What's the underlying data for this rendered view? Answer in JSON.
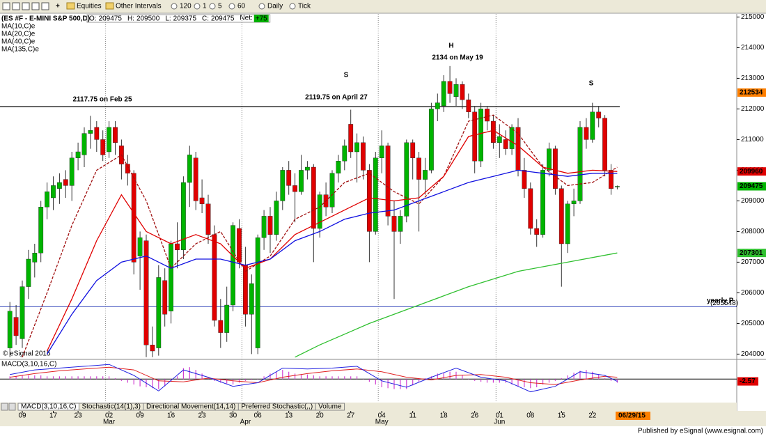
{
  "toolbar": {
    "items": [
      "Equities",
      "Other Intervals",
      "120",
      "1",
      "5",
      "60",
      "Daily",
      "Tick"
    ]
  },
  "watermark": "© eSignal 2015",
  "footer": "Published by eSignal (www.esignal.com)",
  "chart_data": {
    "type": "candlestick",
    "title": "(ES #F - E-MINI S&P 500,D)",
    "quote": [
      {
        "label": "O:",
        "value": 209475
      },
      {
        "label": "H:",
        "value": 209500
      },
      {
        "label": "L:",
        "value": 209375
      },
      {
        "label": "C:",
        "value": 209475
      }
    ],
    "net_label": "Net:",
    "net": "+75",
    "up_color": "#00b400",
    "down_color": "#e00000",
    "open": [
      204200,
      205200,
      204500,
      206200,
      207000,
      207300,
      208800,
      209100,
      209400,
      209700,
      209500,
      210400,
      210500,
      211200,
      211400,
      211000,
      210600,
      211400,
      210800,
      210200,
      209900,
      207200,
      207700,
      204300,
      204200,
      206400,
      205400,
      207600,
      207400,
      209600,
      210400,
      209100,
      208900,
      207900,
      205100,
      204700,
      205600,
      208100,
      206900,
      205300,
      204200,
      207800,
      208500,
      207900,
      209000,
      210000,
      209500,
      209300,
      210000,
      210100,
      208100,
      209200,
      208800,
      209900,
      210300,
      211500,
      210600,
      210900,
      210000,
      208000,
      210400,
      210800,
      208500,
      208000,
      208500,
      210900,
      210400,
      209700,
      210000,
      212000,
      212100,
      212900,
      212400,
      212800,
      212300,
      211900,
      210300,
      212000,
      211600,
      210900,
      211000,
      210700,
      211400,
      210000,
      209400,
      208100,
      207900,
      210000,
      210700,
      209400,
      207600,
      208900,
      209000,
      211400,
      211000,
      211900,
      211700,
      210000,
      209475
    ],
    "high": [
      205700,
      205600,
      206400,
      207400,
      207600,
      209000,
      209600,
      209800,
      209900,
      210000,
      210600,
      210900,
      211400,
      211775,
      211600,
      211300,
      211600,
      211600,
      211000,
      210500,
      210000,
      208000,
      207900,
      204900,
      206900,
      206800,
      207700,
      208300,
      209800,
      210800,
      210600,
      209700,
      209200,
      208200,
      205800,
      206200,
      208300,
      208400,
      207500,
      206600,
      207900,
      208700,
      208800,
      209300,
      210100,
      210300,
      209900,
      210500,
      210300,
      210200,
      209300,
      209600,
      210000,
      210500,
      211000,
      211975,
      211200,
      211100,
      210200,
      210600,
      211300,
      210900,
      209000,
      208700,
      211000,
      211000,
      210600,
      210400,
      212200,
      212500,
      213100,
      213400,
      213000,
      212900,
      212500,
      212100,
      212200,
      212100,
      211800,
      211500,
      211300,
      211500,
      211700,
      210400,
      209600,
      208400,
      210200,
      210900,
      210800,
      209500,
      209000,
      209400,
      211600,
      211700,
      212200,
      212100,
      211800,
      210200,
      209500
    ],
    "low": [
      203900,
      204300,
      204200,
      205800,
      206500,
      207000,
      208400,
      208700,
      208900,
      209100,
      209000,
      210000,
      210100,
      210700,
      210600,
      210300,
      210400,
      210500,
      209700,
      209500,
      206600,
      206100,
      203900,
      203900,
      203950,
      204900,
      205000,
      206800,
      207100,
      208800,
      208700,
      208600,
      207600,
      204900,
      204200,
      204400,
      205400,
      206800,
      204900,
      204000,
      204000,
      207400,
      207300,
      207700,
      208700,
      209200,
      208300,
      209200,
      209700,
      207000,
      207800,
      208500,
      208600,
      209600,
      210000,
      210400,
      209600,
      209700,
      207000,
      207900,
      209900,
      208200,
      205800,
      207600,
      208300,
      209700,
      208000,
      209200,
      209900,
      211600,
      211900,
      212200,
      212100,
      212000,
      211700,
      209900,
      210100,
      211300,
      210700,
      210400,
      210500,
      210500,
      209800,
      209100,
      207900,
      207500,
      207800,
      209800,
      209200,
      206200,
      207300,
      208500,
      208900,
      210700,
      210900,
      211400,
      209800,
      209200,
      209375
    ],
    "close": [
      205400,
      204600,
      206200,
      207100,
      207300,
      208800,
      209300,
      209500,
      209600,
      209500,
      210400,
      210600,
      211200,
      211300,
      211000,
      210500,
      211400,
      210900,
      210200,
      209900,
      207000,
      207800,
      204300,
      204100,
      206500,
      205300,
      207600,
      207400,
      209600,
      210500,
      209000,
      208900,
      207900,
      205100,
      204700,
      205600,
      208200,
      207000,
      205300,
      206300,
      207800,
      208500,
      207900,
      209000,
      210000,
      209500,
      209300,
      210000,
      210100,
      208100,
      209200,
      208800,
      209900,
      210300,
      210800,
      210600,
      210900,
      210000,
      208000,
      210400,
      210800,
      208500,
      208000,
      208500,
      210900,
      210400,
      209700,
      210000,
      212000,
      212200,
      212900,
      212500,
      212800,
      212300,
      211900,
      210300,
      212000,
      211600,
      210900,
      211100,
      210700,
      211400,
      210000,
      209400,
      208100,
      207900,
      210000,
      210700,
      209400,
      207600,
      208900,
      209000,
      211400,
      211000,
      211900,
      211700,
      210000,
      209400,
      209475
    ],
    "ylim": [
      203850,
      215100
    ],
    "yticks": [
      204000,
      205000,
      206000,
      207000,
      208000,
      209000,
      210000,
      211000,
      212000,
      213000,
      214000,
      215000
    ],
    "xticks": [
      {
        "value": 2,
        "label": "09"
      },
      {
        "value": 7,
        "label": "17"
      },
      {
        "value": 11,
        "label": "23"
      },
      {
        "value": 16,
        "label": "02"
      },
      {
        "value": 21,
        "label": "09"
      },
      {
        "value": 26,
        "label": "16"
      },
      {
        "value": 31,
        "label": "23"
      },
      {
        "value": 36,
        "label": "30"
      },
      {
        "value": 40,
        "label": "06"
      },
      {
        "value": 45,
        "label": "13"
      },
      {
        "value": 50,
        "label": "20"
      },
      {
        "value": 55,
        "label": "27"
      },
      {
        "value": 60,
        "label": "04"
      },
      {
        "value": 65,
        "label": "11"
      },
      {
        "value": 70,
        "label": "18"
      },
      {
        "value": 75,
        "label": "26"
      },
      {
        "value": 79,
        "label": "01"
      },
      {
        "value": 84,
        "label": "08"
      },
      {
        "value": 89,
        "label": "15"
      },
      {
        "value": 94,
        "label": "22"
      }
    ],
    "months": [
      {
        "value": 16,
        "label": "Mar"
      },
      {
        "value": 38,
        "label": "Apr"
      },
      {
        "value": 60,
        "label": "May"
      },
      {
        "value": 79,
        "label": "Jun"
      }
    ],
    "moving_averages": [
      {
        "name": "MA(10,C)e",
        "color": "#a01010",
        "dashed": true,
        "x": [
          2,
          6,
          10,
          14,
          18,
          22,
          26,
          30,
          34,
          38,
          42,
          46,
          50,
          54,
          58,
          62,
          66,
          70,
          74,
          78,
          82,
          86,
          90,
          94,
          98
        ],
        "values": [
          203900,
          206000,
          208200,
          210000,
          210500,
          209000,
          206800,
          207600,
          208000,
          206700,
          207200,
          208400,
          208800,
          209600,
          209900,
          209300,
          208900,
          209800,
          211600,
          211800,
          211200,
          210100,
          209500,
          209600,
          210100
        ]
      },
      {
        "name": "MA(20,C)e",
        "color": "#e00000",
        "dashed": false,
        "x": [
          6,
          10,
          14,
          18,
          22,
          26,
          30,
          34,
          38,
          42,
          46,
          50,
          54,
          58,
          62,
          66,
          70,
          74,
          78,
          82,
          86,
          90,
          94,
          98
        ],
        "values": [
          204100,
          205800,
          207700,
          209200,
          208000,
          207600,
          207900,
          207600,
          206800,
          207100,
          207900,
          208300,
          208700,
          209100,
          209000,
          209100,
          209800,
          211100,
          211300,
          210800,
          210100,
          209900,
          210000,
          209960
        ]
      },
      {
        "name": "MA(40,C)e",
        "color": "#1010e0",
        "dashed": false,
        "x": [
          6,
          10,
          14,
          18,
          22,
          26,
          30,
          34,
          38,
          42,
          46,
          50,
          54,
          58,
          62,
          66,
          70,
          74,
          78,
          82,
          86,
          90,
          94,
          98
        ],
        "values": [
          204000,
          205300,
          206400,
          207000,
          207200,
          206800,
          207100,
          207100,
          206900,
          207100,
          207700,
          208000,
          208400,
          208600,
          208700,
          209000,
          209300,
          209600,
          209800,
          210000,
          209900,
          209800,
          209900,
          209900
        ]
      },
      {
        "name": "MA(135,C)e",
        "color": "#30c030",
        "dashed": false,
        "x": [
          46,
          50,
          58,
          66,
          74,
          82,
          90,
          98
        ],
        "values": [
          203900,
          204300,
          205000,
          205600,
          206200,
          206700,
          207000,
          207301
        ]
      }
    ],
    "hlines": [
      {
        "value": 212075,
        "color": "#000000"
      },
      {
        "value": 205548,
        "label": "(205548)",
        "color": "#1a2fb0"
      }
    ],
    "price_marker": {
      "value": 212534,
      "color": "#ff7f00"
    },
    "annotations": [
      "2117.75 on Feb 25",
      "2119.75 on April 27",
      "2134 on May 19",
      "H",
      "S",
      "S",
      "yearly P"
    ],
    "indicator": {
      "name": "MACD(3,10,16,C)",
      "ylim": [
        -25,
        20
      ],
      "macd": {
        "color": "#2020e0",
        "x": [
          0,
          4,
          8,
          12,
          16,
          20,
          24,
          28,
          32,
          36,
          40,
          44,
          48,
          52,
          56,
          60,
          64,
          68,
          72,
          76,
          80,
          84,
          88,
          92,
          96,
          98
        ],
        "values": [
          5,
          10,
          12,
          14,
          16,
          4,
          -13,
          10,
          2,
          -8,
          -4,
          12,
          11,
          12,
          14,
          -2,
          -9,
          2,
          12,
          2,
          -2,
          -14,
          -8,
          8,
          4,
          -2.57
        ]
      },
      "signal": {
        "color": "#e02020",
        "x": [
          0,
          4,
          8,
          12,
          16,
          20,
          24,
          28,
          32,
          36,
          40,
          44,
          48,
          52,
          56,
          60,
          64,
          68,
          72,
          76,
          80,
          84,
          88,
          92,
          96,
          98
        ],
        "values": [
          2,
          6,
          9,
          11,
          13,
          10,
          -2,
          -3,
          1,
          -2,
          -4,
          2,
          6,
          9,
          11,
          8,
          2,
          -1,
          4,
          5,
          2,
          -4,
          -6,
          -1,
          3,
          2
        ]
      },
      "histogram": {
        "color": "#d040d0",
        "values": [
          3,
          3,
          4,
          4,
          4,
          4,
          3,
          3,
          3,
          3,
          3,
          3,
          3,
          3,
          3,
          3,
          3,
          1,
          -2,
          -4,
          -6,
          -8,
          -9,
          -10,
          -11,
          -8,
          -3,
          3,
          12,
          13,
          10,
          6,
          1,
          -2,
          -4,
          -5,
          -6,
          -4,
          -2,
          -1,
          0,
          3,
          6,
          8,
          10,
          8,
          6,
          5,
          5,
          4,
          3,
          3,
          3,
          3,
          3,
          3,
          3,
          0,
          -3,
          -6,
          -9,
          -10,
          -11,
          -11,
          -11,
          -7,
          -3,
          1,
          3,
          6,
          7,
          8,
          8,
          4,
          0,
          -2,
          -3,
          -4,
          -4,
          -4,
          -4,
          -6,
          -8,
          -9,
          -10,
          -9,
          -6,
          -4,
          -2,
          1,
          4,
          7,
          9,
          10,
          8,
          5,
          1,
          -2,
          -4
        ]
      }
    },
    "tabs": [
      "MACD(3,10,16,C)",
      "Stochastic(14(1),3)",
      "Directional Movement(14,14)",
      "Preferred Stochastic(,,)",
      "Volume"
    ],
    "date_box": "06/29/15"
  }
}
